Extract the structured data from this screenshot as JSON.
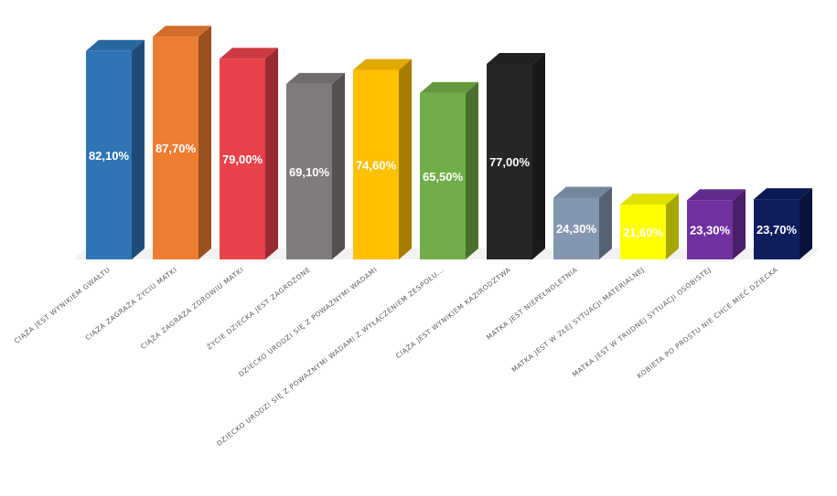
{
  "chart_data": {
    "type": "bar",
    "style": "3d-column",
    "categories": [
      "CIĄŻA JEST WYNIKIEM GWAŁTU",
      "CIĄŻA ZAGRAŻA ŻYCIU MATKI",
      "CIĄŻA ZAGRAŻA ZDROWIU MATKI",
      "ŻYCIE DZIECKA JEST ZAGROŻONE",
      "DZIECKO URODZI SIĘ Z POWAŻNYMI WADAMI",
      "DZIECKO URODZI SIĘ Z POWAŻNYMI WADAMI Z WYŁĄCZENIEM ZESPOŁU...",
      "CIĄŻA JEST WYNIKIEM KAZIRODZTWA",
      "MATKA JEST NIEPEŁNOLETNIA",
      "MATKA JEST W ZŁEJ SYTUACJI MATERIALNEJ",
      "MATKA JEST W TRUDNEJ SYTUACJI OSOBISTEJ",
      "KOBIETA PO PROSTU NIE CHCE MIEĆ DZIECKA"
    ],
    "values": [
      82.1,
      87.7,
      79.0,
      69.1,
      74.6,
      65.5,
      77.0,
      24.3,
      21.6,
      23.3,
      23.7
    ],
    "value_labels": [
      "82,10%",
      "87,70%",
      "79,00%",
      "69,10%",
      "74,60%",
      "65,50%",
      "77,00%",
      "24,30%",
      "21,60%",
      "23,30%",
      "23,70%"
    ],
    "colors": [
      "#2E75B6",
      "#ED7D31",
      "#E8424B",
      "#7F7B7A",
      "#FFC000",
      "#70AD47",
      "#262626",
      "#8497B0",
      "#FFFF00",
      "#7030A0",
      "#0E1D5E"
    ],
    "ylim": [
      0,
      100
    ],
    "grid": false,
    "legend": "none"
  }
}
